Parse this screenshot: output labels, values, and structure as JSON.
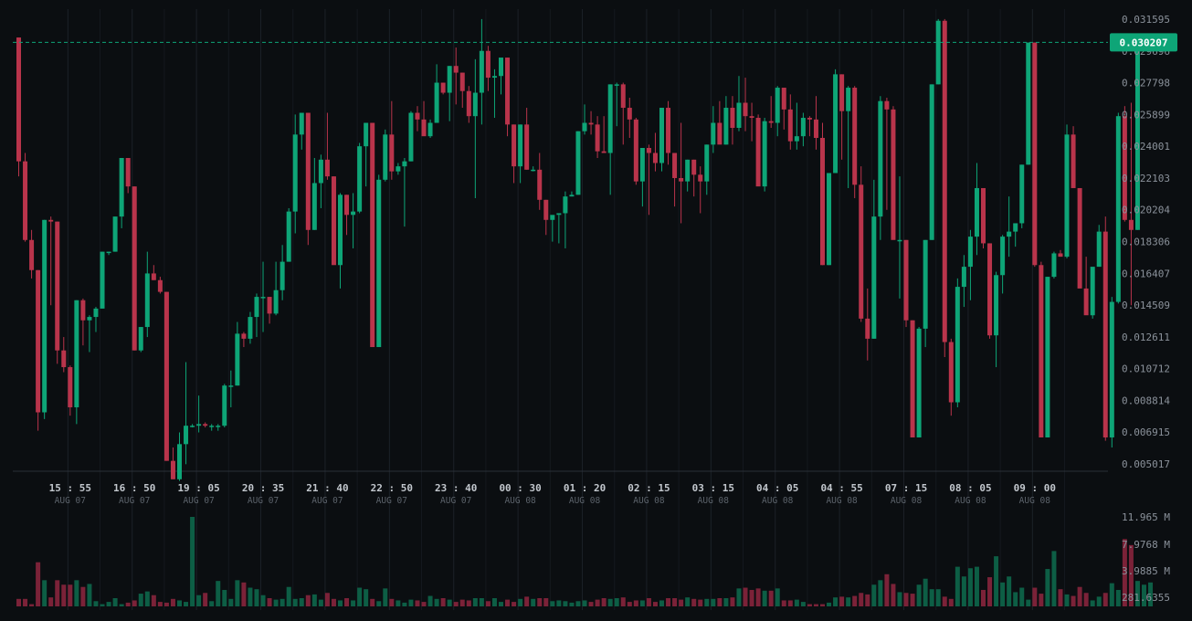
{
  "chart_data": {
    "type": "candlestick",
    "current_price": {
      "label": "0.030207",
      "value": 0.030207
    },
    "y_axis": {
      "ticks": [
        "0.031595",
        "0.029696",
        "0.027798",
        "0.025899",
        "0.024001",
        "0.022103",
        "0.020204",
        "0.018306",
        "0.016407",
        "0.014509",
        "0.012611",
        "0.010712",
        "0.008814",
        "0.006915",
        "0.005017"
      ],
      "ylim": [
        0.005017,
        0.031595
      ]
    },
    "x_axis": {
      "ticks": [
        {
          "time": "15 : 55",
          "date": "AUG 07",
          "idx": 8
        },
        {
          "time": "16 : 50",
          "date": "AUG 07",
          "idx": 18
        },
        {
          "time": "19 : 05",
          "date": "AUG 07",
          "idx": 28
        },
        {
          "time": "20 : 35",
          "date": "AUG 07",
          "idx": 38
        },
        {
          "time": "21 : 40",
          "date": "AUG 07",
          "idx": 48
        },
        {
          "time": "22 : 50",
          "date": "AUG 07",
          "idx": 58
        },
        {
          "time": "23 : 40",
          "date": "AUG 07",
          "idx": 68
        },
        {
          "time": "00 : 30",
          "date": "AUG 08",
          "idx": 78
        },
        {
          "time": "01 : 20",
          "date": "AUG 08",
          "idx": 88
        },
        {
          "time": "02 : 15",
          "date": "AUG 08",
          "idx": 98
        },
        {
          "time": "03 : 15",
          "date": "AUG 08",
          "idx": 108
        },
        {
          "time": "04 : 05",
          "date": "AUG 08",
          "idx": 118
        },
        {
          "time": "04 : 55",
          "date": "AUG 08",
          "idx": 128
        },
        {
          "time": "07 : 15",
          "date": "AUG 08",
          "idx": 138
        },
        {
          "time": "08 : 05",
          "date": "AUG 08",
          "idx": 148
        },
        {
          "time": "09 : 00",
          "date": "AUG 08",
          "idx": 158
        }
      ]
    },
    "volume_axis": {
      "ticks": [
        "11.965 M",
        "7.9768 M",
        "3.9885 M",
        "281.6355"
      ],
      "ylim": [
        0,
        11.965
      ]
    },
    "candles_ohlc": [
      [
        0.0305,
        0.0305,
        0.0222,
        0.0231
      ],
      [
        0.0231,
        0.0236,
        0.0183,
        0.0184
      ],
      [
        0.0184,
        0.019,
        0.0161,
        0.0166
      ],
      [
        0.0166,
        0.0166,
        0.007,
        0.0081
      ],
      [
        0.0081,
        0.0196,
        0.0077,
        0.0196
      ],
      [
        0.0196,
        0.0198,
        0.0145,
        0.0195
      ],
      [
        0.0195,
        0.0195,
        0.011,
        0.0118
      ],
      [
        0.0118,
        0.0126,
        0.0105,
        0.0108
      ],
      [
        0.0108,
        0.0109,
        0.0079,
        0.0084
      ],
      [
        0.0084,
        0.0148,
        0.0074,
        0.0148
      ],
      [
        0.0148,
        0.0149,
        0.0121,
        0.0136
      ],
      [
        0.0136,
        0.0139,
        0.0117,
        0.0138
      ],
      [
        0.0138,
        0.0144,
        0.0129,
        0.0143
      ],
      [
        0.0143,
        0.0177,
        0.0143,
        0.0177
      ],
      [
        0.0177,
        0.0177,
        0.0175,
        0.0177
      ],
      [
        0.0177,
        0.0198,
        0.0177,
        0.0198
      ],
      [
        0.0198,
        0.0233,
        0.0191,
        0.0233
      ],
      [
        0.0233,
        0.0233,
        0.0212,
        0.0216
      ],
      [
        0.0216,
        0.0216,
        0.0118,
        0.0118
      ],
      [
        0.0118,
        0.0132,
        0.0117,
        0.0132
      ],
      [
        0.0132,
        0.0177,
        0.0126,
        0.0164
      ],
      [
        0.0164,
        0.0169,
        0.016,
        0.016
      ],
      [
        0.016,
        0.0162,
        0.0152,
        0.0153
      ],
      [
        0.0153,
        0.0153,
        0.0052,
        0.0052
      ],
      [
        0.0052,
        0.006,
        0.0041,
        0.0041
      ],
      [
        0.0041,
        0.0069,
        0.004,
        0.0062
      ],
      [
        0.0062,
        0.0111,
        0.005,
        0.0073
      ],
      [
        0.0073,
        0.0074,
        0.0072,
        0.0073
      ],
      [
        0.0073,
        0.0091,
        0.0069,
        0.0074
      ],
      [
        0.0074,
        0.0075,
        0.0072,
        0.0073
      ],
      [
        0.0073,
        0.0074,
        0.007,
        0.0073
      ],
      [
        0.0073,
        0.0074,
        0.007,
        0.0073
      ],
      [
        0.0073,
        0.0098,
        0.0072,
        0.0097
      ],
      [
        0.0097,
        0.0106,
        0.0084,
        0.0097
      ],
      [
        0.0097,
        0.0135,
        0.0097,
        0.0128
      ],
      [
        0.0128,
        0.0129,
        0.012,
        0.0125
      ],
      [
        0.0125,
        0.0141,
        0.0122,
        0.0138
      ],
      [
        0.0138,
        0.0152,
        0.0126,
        0.015
      ],
      [
        0.015,
        0.0171,
        0.0129,
        0.015
      ],
      [
        0.015,
        0.015,
        0.0134,
        0.014
      ],
      [
        0.014,
        0.0171,
        0.0139,
        0.0154
      ],
      [
        0.0154,
        0.0181,
        0.0148,
        0.0171
      ],
      [
        0.0171,
        0.0203,
        0.0171,
        0.0201
      ],
      [
        0.0201,
        0.0259,
        0.0188,
        0.0247
      ],
      [
        0.0247,
        0.0259,
        0.0238,
        0.026
      ],
      [
        0.026,
        0.026,
        0.0181,
        0.019
      ],
      [
        0.019,
        0.0233,
        0.019,
        0.0218
      ],
      [
        0.0218,
        0.0235,
        0.0203,
        0.0232
      ],
      [
        0.0232,
        0.026,
        0.022,
        0.0222
      ],
      [
        0.0222,
        0.0222,
        0.0179,
        0.0169
      ],
      [
        0.0169,
        0.0212,
        0.0155,
        0.0211
      ],
      [
        0.0211,
        0.0211,
        0.0187,
        0.0199
      ],
      [
        0.0199,
        0.0212,
        0.0179,
        0.0201
      ],
      [
        0.0201,
        0.0242,
        0.02,
        0.024
      ],
      [
        0.024,
        0.0254,
        0.0216,
        0.0254
      ],
      [
        0.0254,
        0.0254,
        0.0222,
        0.012
      ],
      [
        0.012,
        0.0223,
        0.012,
        0.022
      ],
      [
        0.022,
        0.025,
        0.0219,
        0.0247
      ],
      [
        0.0247,
        0.0267,
        0.022,
        0.0225
      ],
      [
        0.0225,
        0.023,
        0.0223,
        0.0228
      ],
      [
        0.0228,
        0.0233,
        0.0192,
        0.0231
      ],
      [
        0.0231,
        0.0261,
        0.0231,
        0.026
      ],
      [
        0.026,
        0.0264,
        0.0249,
        0.0256
      ],
      [
        0.0256,
        0.0267,
        0.0254,
        0.0246
      ],
      [
        0.0246,
        0.0256,
        0.0245,
        0.0254
      ],
      [
        0.0254,
        0.0289,
        0.0254,
        0.0278
      ],
      [
        0.0278,
        0.0278,
        0.0271,
        0.0272
      ],
      [
        0.0272,
        0.0288,
        0.0255,
        0.0288
      ],
      [
        0.0288,
        0.0299,
        0.0265,
        0.0284
      ],
      [
        0.0284,
        0.0284,
        0.0263,
        0.0273
      ],
      [
        0.0273,
        0.0276,
        0.0254,
        0.0258
      ],
      [
        0.0258,
        0.0292,
        0.0209,
        0.0272
      ],
      [
        0.0272,
        0.0316,
        0.0253,
        0.0297
      ],
      [
        0.0297,
        0.03,
        0.0273,
        0.0281
      ],
      [
        0.0281,
        0.0286,
        0.0257,
        0.0282
      ],
      [
        0.0282,
        0.0289,
        0.0271,
        0.0293
      ],
      [
        0.0293,
        0.0293,
        0.0246,
        0.0253
      ],
      [
        0.0253,
        0.0253,
        0.0218,
        0.0228
      ],
      [
        0.0228,
        0.0253,
        0.0218,
        0.0253
      ],
      [
        0.0253,
        0.0263,
        0.0226,
        0.0226
      ],
      [
        0.0226,
        0.0228,
        0.0225,
        0.0226
      ],
      [
        0.0226,
        0.0236,
        0.0202,
        0.0208
      ],
      [
        0.0208,
        0.0208,
        0.0187,
        0.0196
      ],
      [
        0.0196,
        0.0198,
        0.0183,
        0.0199
      ],
      [
        0.0199,
        0.0199,
        0.0182,
        0.02
      ],
      [
        0.02,
        0.0213,
        0.0179,
        0.021
      ],
      [
        0.021,
        0.0213,
        0.021,
        0.0211
      ],
      [
        0.0211,
        0.0249,
        0.0211,
        0.0249
      ],
      [
        0.0249,
        0.0265,
        0.0247,
        0.0254
      ],
      [
        0.0254,
        0.0261,
        0.0247,
        0.0253
      ],
      [
        0.0253,
        0.0258,
        0.0233,
        0.0237
      ],
      [
        0.0237,
        0.0258,
        0.0236,
        0.0236
      ],
      [
        0.0236,
        0.0277,
        0.0211,
        0.0277
      ],
      [
        0.0277,
        0.0278,
        0.0252,
        0.0277
      ],
      [
        0.0277,
        0.0278,
        0.0241,
        0.0263
      ],
      [
        0.0263,
        0.0269,
        0.0245,
        0.0256
      ],
      [
        0.0256,
        0.0257,
        0.0217,
        0.0219
      ],
      [
        0.0219,
        0.0239,
        0.0204,
        0.0239
      ],
      [
        0.0239,
        0.0241,
        0.0199,
        0.0236
      ],
      [
        0.0236,
        0.0248,
        0.0225,
        0.023
      ],
      [
        0.023,
        0.0263,
        0.0225,
        0.0263
      ],
      [
        0.0263,
        0.0267,
        0.0229,
        0.0236
      ],
      [
        0.0236,
        0.0236,
        0.0204,
        0.0221
      ],
      [
        0.0221,
        0.0254,
        0.0194,
        0.0219
      ],
      [
        0.0219,
        0.0232,
        0.0213,
        0.0232
      ],
      [
        0.0232,
        0.0232,
        0.021,
        0.0223
      ],
      [
        0.0223,
        0.0228,
        0.02,
        0.0219
      ],
      [
        0.0219,
        0.0241,
        0.0211,
        0.0241
      ],
      [
        0.0241,
        0.0264,
        0.0236,
        0.0254
      ],
      [
        0.0254,
        0.0267,
        0.0243,
        0.0241
      ],
      [
        0.0241,
        0.027,
        0.0241,
        0.0263
      ],
      [
        0.0263,
        0.027,
        0.0241,
        0.0251
      ],
      [
        0.0251,
        0.0282,
        0.0249,
        0.0266
      ],
      [
        0.0266,
        0.0281,
        0.0249,
        0.0258
      ],
      [
        0.0258,
        0.0266,
        0.0243,
        0.0257
      ],
      [
        0.0257,
        0.0259,
        0.0217,
        0.0216
      ],
      [
        0.0216,
        0.0257,
        0.0213,
        0.0255
      ],
      [
        0.0255,
        0.027,
        0.0251,
        0.0254
      ],
      [
        0.0254,
        0.0276,
        0.0246,
        0.0275
      ],
      [
        0.0275,
        0.0275,
        0.025,
        0.0262
      ],
      [
        0.0262,
        0.0271,
        0.0238,
        0.0243
      ],
      [
        0.0243,
        0.0266,
        0.0238,
        0.0246
      ],
      [
        0.0246,
        0.026,
        0.024,
        0.0257
      ],
      [
        0.0257,
        0.0258,
        0.0246,
        0.0256
      ],
      [
        0.0256,
        0.027,
        0.0238,
        0.0245
      ],
      [
        0.0245,
        0.0254,
        0.0169,
        0.0169
      ],
      [
        0.0169,
        0.0224,
        0.0169,
        0.0224
      ],
      [
        0.0224,
        0.0286,
        0.0224,
        0.0283
      ],
      [
        0.0283,
        0.0283,
        0.0232,
        0.0261
      ],
      [
        0.0261,
        0.0276,
        0.0215,
        0.0275
      ],
      [
        0.0275,
        0.0276,
        0.0209,
        0.0217
      ],
      [
        0.0217,
        0.0228,
        0.0135,
        0.0137
      ],
      [
        0.0137,
        0.0155,
        0.0112,
        0.0125
      ],
      [
        0.0125,
        0.022,
        0.0125,
        0.0198
      ],
      [
        0.0198,
        0.027,
        0.0184,
        0.0267
      ],
      [
        0.0267,
        0.0269,
        0.0202,
        0.0262
      ],
      [
        0.0262,
        0.0264,
        0.0187,
        0.0184
      ],
      [
        0.0184,
        0.0222,
        0.0149,
        0.0184
      ],
      [
        0.0184,
        0.0184,
        0.0132,
        0.0136
      ],
      [
        0.0136,
        0.0136,
        0.0074,
        0.0066
      ],
      [
        0.0066,
        0.0132,
        0.0066,
        0.0131
      ],
      [
        0.0131,
        0.0184,
        0.012,
        0.0184
      ],
      [
        0.0184,
        0.0277,
        0.0184,
        0.0277
      ],
      [
        0.0277,
        0.0316,
        0.0277,
        0.0315
      ],
      [
        0.0315,
        0.0316,
        0.0114,
        0.0123
      ],
      [
        0.0123,
        0.0125,
        0.0079,
        0.0087
      ],
      [
        0.0087,
        0.0161,
        0.0084,
        0.0156
      ],
      [
        0.0156,
        0.0175,
        0.0144,
        0.0168
      ],
      [
        0.0168,
        0.019,
        0.0148,
        0.0186
      ],
      [
        0.0186,
        0.023,
        0.0175,
        0.0215
      ],
      [
        0.0215,
        0.0215,
        0.0179,
        0.0182
      ],
      [
        0.0182,
        0.0182,
        0.0125,
        0.0127
      ],
      [
        0.0127,
        0.0165,
        0.0108,
        0.0163
      ],
      [
        0.0163,
        0.0187,
        0.0152,
        0.0186
      ],
      [
        0.0186,
        0.021,
        0.0174,
        0.0189
      ],
      [
        0.0189,
        0.0193,
        0.018,
        0.0194
      ],
      [
        0.0194,
        0.0229,
        0.0191,
        0.0229
      ],
      [
        0.0229,
        0.0302,
        0.0229,
        0.0302
      ],
      [
        0.0302,
        0.0302,
        0.0168,
        0.0169
      ],
      [
        0.0169,
        0.0171,
        0.0066,
        0.0066
      ],
      [
        0.0066,
        0.0162,
        0.0066,
        0.0162
      ],
      [
        0.0162,
        0.0177,
        0.0161,
        0.0176
      ],
      [
        0.0176,
        0.0178,
        0.0174,
        0.0174
      ],
      [
        0.0174,
        0.0253,
        0.0173,
        0.0247
      ],
      [
        0.0247,
        0.0252,
        0.0217,
        0.0215
      ],
      [
        0.0215,
        0.0215,
        0.0157,
        0.0155
      ],
      [
        0.0155,
        0.0174,
        0.0143,
        0.0139
      ],
      [
        0.0139,
        0.0163,
        0.0137,
        0.0168
      ],
      [
        0.0168,
        0.0193,
        0.0168,
        0.0189
      ],
      [
        0.0189,
        0.0198,
        0.0064,
        0.0066
      ],
      [
        0.0066,
        0.015,
        0.006,
        0.0147
      ],
      [
        0.0147,
        0.026,
        0.0146,
        0.0258
      ],
      [
        0.0258,
        0.0264,
        0.0195,
        0.0196
      ],
      [
        0.0196,
        0.0266,
        0.0145,
        0.019
      ],
      [
        0.019,
        0.0304,
        0.019,
        0.0302
      ]
    ],
    "volumes_m": [
      1.0,
      1.0,
      0.3,
      5.9,
      3.5,
      1.2,
      3.5,
      2.9,
      2.9,
      3.5,
      2.6,
      3.0,
      0.7,
      0.3,
      0.6,
      1.1,
      0.3,
      0.5,
      0.8,
      1.7,
      2.0,
      1.5,
      0.6,
      0.5,
      1.0,
      0.8,
      0.6,
      11.965,
      1.5,
      1.8,
      0.7,
      3.4,
      2.2,
      1.0,
      3.5,
      3.2,
      2.5,
      2.3,
      1.5,
      1.1,
      0.9,
      1.0,
      2.6,
      1.0,
      1.1,
      1.5,
      1.6,
      0.9,
      1.8,
      1.0,
      0.8,
      1.1,
      0.8,
      2.5,
      2.3,
      1.0,
      0.7,
      2.4,
      1.0,
      0.8,
      0.5,
      0.9,
      0.8,
      0.6,
      1.4,
      1.0,
      1.1,
      0.9,
      0.6,
      0.9,
      0.8,
      1.1,
      1.1,
      0.7,
      1.1,
      0.6,
      0.9,
      0.6,
      1.0,
      1.3,
      1.0,
      1.1,
      1.1,
      0.7,
      0.8,
      0.7,
      0.5,
      0.7,
      0.8,
      0.6,
      0.9,
      1.1,
      1.0,
      1.1,
      1.2,
      0.6,
      0.8,
      0.8,
      1.1,
      0.6,
      0.8,
      1.1,
      1.1,
      0.9,
      1.2,
      1.0,
      0.9,
      1.0,
      1.0,
      1.1,
      1.1,
      1.2,
      2.4,
      2.5,
      2.2,
      2.4,
      2.1,
      2.1,
      2.4,
      0.8,
      0.8,
      0.9,
      0.6,
      0.3,
      0.3,
      0.3,
      0.5,
      1.2,
      1.3,
      1.2,
      1.4,
      1.8,
      1.6,
      2.9,
      3.5,
      4.3,
      3.0,
      1.9,
      1.8,
      1.7,
      2.9,
      3.7,
      2.3,
      2.3,
      1.3,
      1.0,
      5.3,
      4.0,
      5.1,
      5.3,
      2.2,
      3.9,
      6.7,
      3.2,
      4.0,
      1.9,
      2.5,
      0.9,
      2.5,
      1.7,
      5.0,
      7.4,
      2.3,
      1.6,
      1.4,
      2.6,
      1.8,
      0.8,
      1.3,
      1.8,
      3.1,
      2.2,
      9.0,
      8.2,
      3.4,
      2.9,
      3.2
    ],
    "colors": {
      "background": "#0b0e11",
      "up": "#0ea577",
      "down": "#b9344b",
      "up_volume": "#0d5e45",
      "down_volume": "#7b2238",
      "grid": "#1c2128",
      "current_price": "#0ea577"
    }
  }
}
